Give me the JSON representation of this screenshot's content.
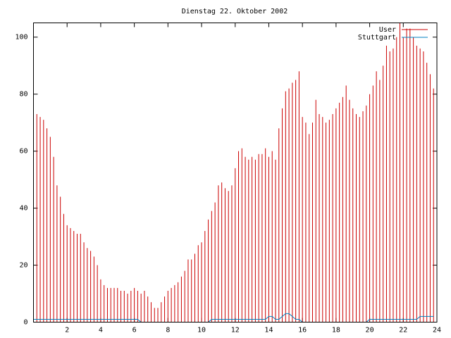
{
  "chart_data": {
    "type": "impulse",
    "title": "Dienstag 22. Oktober 2002",
    "x": [
      0,
      0.2,
      0.4,
      0.6,
      0.8,
      1,
      1.2,
      1.4,
      1.6,
      1.8,
      2,
      2.2,
      2.4,
      2.6,
      2.8,
      3,
      3.2,
      3.4,
      3.6,
      3.8,
      4,
      4.2,
      4.4,
      4.6,
      4.8,
      5,
      5.2,
      5.4,
      5.6,
      5.8,
      6,
      6.2,
      6.4,
      6.6,
      6.8,
      7,
      7.2,
      7.4,
      7.6,
      7.8,
      8,
      8.2,
      8.4,
      8.6,
      8.8,
      9,
      9.2,
      9.4,
      9.6,
      9.8,
      10,
      10.2,
      10.4,
      10.6,
      10.8,
      11,
      11.2,
      11.4,
      11.6,
      11.8,
      12,
      12.2,
      12.4,
      12.6,
      12.8,
      13,
      13.2,
      13.4,
      13.6,
      13.8,
      14,
      14.2,
      14.4,
      14.6,
      14.8,
      15,
      15.2,
      15.4,
      15.6,
      15.8,
      16,
      16.2,
      16.4,
      16.6,
      16.8,
      17,
      17.2,
      17.4,
      17.6,
      17.8,
      18,
      18.2,
      18.4,
      18.6,
      18.8,
      19,
      19.2,
      19.4,
      19.6,
      19.8,
      20,
      20.2,
      20.4,
      20.6,
      20.8,
      21,
      21.2,
      21.4,
      21.6,
      21.8,
      22,
      22.2,
      22.4,
      22.6,
      22.8,
      23,
      23.2,
      23.4,
      23.6,
      23.8
    ],
    "series": [
      {
        "name": "User",
        "color": "#cc0000",
        "style": "impulses",
        "values": [
          74,
          73,
          72,
          71,
          68,
          65,
          58,
          48,
          44,
          38,
          34,
          33,
          32,
          31,
          31,
          28,
          26,
          25,
          23,
          20,
          15,
          13,
          12,
          12,
          12,
          12,
          11,
          11,
          10,
          11,
          12,
          11,
          10,
          11,
          9,
          7,
          5,
          5,
          7,
          9,
          11,
          12,
          13,
          14,
          16,
          18,
          22,
          22,
          24,
          27,
          28,
          32,
          36,
          39,
          42,
          48,
          49,
          47,
          46,
          48,
          54,
          60,
          61,
          58,
          57,
          58,
          57,
          59,
          59,
          61,
          58,
          60,
          57,
          68,
          75,
          81,
          82,
          84,
          85,
          88,
          72,
          70,
          66,
          70,
          78,
          73,
          72,
          70,
          71,
          73,
          75,
          77,
          79,
          83,
          78,
          75,
          73,
          72,
          74,
          76,
          80,
          83,
          88,
          85,
          90,
          97,
          95,
          96,
          100,
          105,
          100,
          103,
          103,
          100,
          97,
          96,
          95,
          91,
          87,
          82
        ]
      },
      {
        "name": "Stuttgart",
        "color": "#0080c0",
        "style": "lines",
        "values": [
          1,
          1,
          1,
          1,
          1,
          1,
          1,
          1,
          1,
          1,
          1,
          1,
          1,
          1,
          1,
          1,
          1,
          1,
          1,
          1,
          1,
          1,
          1,
          1,
          1,
          1,
          1,
          1,
          1,
          1,
          1,
          1,
          0,
          0,
          0,
          0,
          0,
          0,
          0,
          0,
          0,
          0,
          0,
          0,
          0,
          0,
          0,
          0,
          0,
          0,
          0,
          0,
          0,
          1,
          1,
          1,
          1,
          1,
          1,
          1,
          1,
          1,
          1,
          1,
          1,
          1,
          1,
          1,
          1,
          1,
          2,
          2,
          1,
          1,
          2,
          3,
          3,
          2,
          1,
          1,
          0,
          0,
          0,
          0,
          0,
          0,
          0,
          0,
          0,
          0,
          0,
          0,
          0,
          0,
          0,
          0,
          0,
          0,
          0,
          0,
          1,
          1,
          1,
          1,
          1,
          1,
          1,
          1,
          1,
          1,
          1,
          1,
          1,
          1,
          1,
          2,
          2,
          2,
          2,
          2
        ]
      }
    ],
    "xlim": [
      0,
      24
    ],
    "xticks": [
      2,
      4,
      6,
      8,
      10,
      12,
      14,
      16,
      18,
      20,
      22,
      24
    ],
    "ylim": [
      0,
      105
    ],
    "yticks": [
      0,
      20,
      40,
      60,
      80,
      100
    ]
  }
}
